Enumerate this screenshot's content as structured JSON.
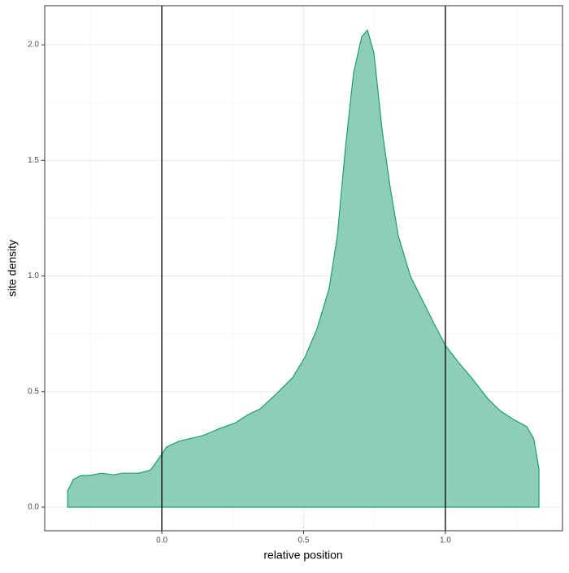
{
  "chart_data": {
    "type": "area",
    "x_label": "relative position",
    "y_label": "site density",
    "x": [
      -0.332,
      -0.312,
      -0.284,
      -0.255,
      -0.212,
      -0.169,
      -0.14,
      -0.083,
      -0.04,
      -0.011,
      0.017,
      0.06,
      0.146,
      0.203,
      0.26,
      0.304,
      0.347,
      0.404,
      0.461,
      0.504,
      0.547,
      0.59,
      0.619,
      0.648,
      0.676,
      0.705,
      0.725,
      0.748,
      0.777,
      0.805,
      0.834,
      0.877,
      0.92,
      0.963,
      1.0,
      1.049,
      1.092,
      1.149,
      1.192,
      1.235,
      1.287,
      1.312,
      1.33
    ],
    "series": [
      {
        "color": "#1b9e77",
        "fill": "#8ecdb8",
        "values": [
          0.07,
          0.12,
          0.137,
          0.137,
          0.147,
          0.14,
          0.147,
          0.147,
          0.16,
          0.21,
          0.26,
          0.285,
          0.31,
          0.34,
          0.365,
          0.4,
          0.425,
          0.49,
          0.56,
          0.647,
          0.77,
          0.946,
          1.174,
          1.56,
          1.877,
          2.035,
          2.063,
          1.965,
          1.63,
          1.385,
          1.174,
          0.998,
          0.893,
          0.787,
          0.7,
          0.622,
          0.56,
          0.47,
          0.418,
          0.383,
          0.348,
          0.295,
          0.165
        ]
      }
    ],
    "xlim": [
      -0.413,
      1.413
    ],
    "ylim": [
      -0.102,
      2.169
    ],
    "xticks": [
      {
        "value": 0,
        "label": "0.0"
      },
      0.5,
      {
        "value": 1,
        "label": "1.0"
      }
    ],
    "yticks": [
      {
        "value": 0,
        "label": "0.0"
      },
      0.5,
      {
        "value": 1,
        "label": "1.0"
      },
      1.5,
      {
        "value": 2,
        "label": "2.0"
      }
    ],
    "x_minor_ticks": [
      -0.25,
      0.25,
      0.75,
      1.25
    ],
    "y_minor_ticks": [
      0.25,
      0.75,
      1.25,
      1.75
    ],
    "vlines": [
      0,
      1
    ],
    "grid": true
  }
}
